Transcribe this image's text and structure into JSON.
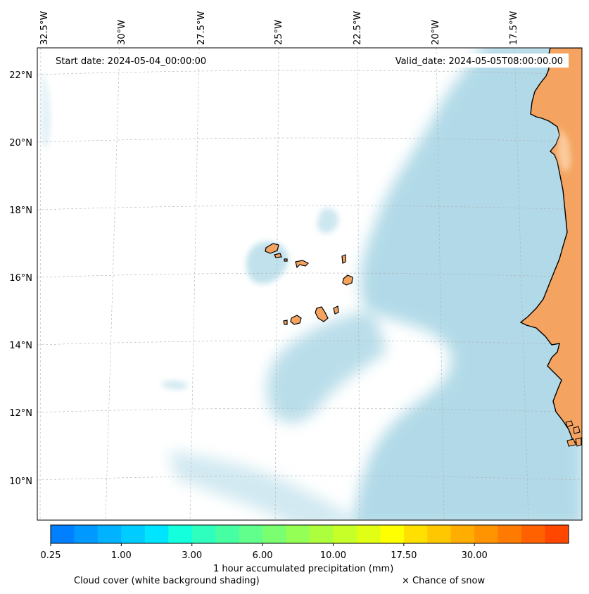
{
  "map": {
    "start_date": "Start date: 2024-05-04_00:00:00",
    "valid_date": "Valid_date: 2024-05-05T08:00:00.00",
    "lon_labels": [
      "32.5°W",
      "30°W",
      "27.5°W",
      "25°W",
      "22.5°W",
      "20°W",
      "17.5°W"
    ],
    "lat_labels": [
      "22°N",
      "20°N",
      "18°N",
      "16°N",
      "14°N",
      "12°N",
      "10°N"
    ],
    "colors": {
      "land": "#f4a460",
      "cloud": "#add8e6",
      "ocean": "#ffffff",
      "coastline": "#000000",
      "gridline": "#b0b0b0"
    }
  },
  "colorbar": {
    "colors": [
      "#0080ff",
      "#0099ff",
      "#00b2ff",
      "#00ccff",
      "#00e5ff",
      "#14ffdc",
      "#2effbf",
      "#47ffa3",
      "#61ff8c",
      "#7aff70",
      "#94ff54",
      "#adff3d",
      "#c7ff29",
      "#e0ff14",
      "#ffff00",
      "#ffe000",
      "#ffc700",
      "#ffad00",
      "#ff9400",
      "#ff7a00",
      "#ff6100",
      "#ff4700"
    ],
    "tick_labels": [
      "0.25",
      "1.00",
      "3.00",
      "6.00",
      "10.00",
      "17.50",
      "30.00"
    ],
    "label": "1 hour accumulated precipitation (mm)"
  },
  "legend": {
    "cloud_cover": "Cloud cover (white background shading)",
    "snow": "× Chance of snow"
  }
}
